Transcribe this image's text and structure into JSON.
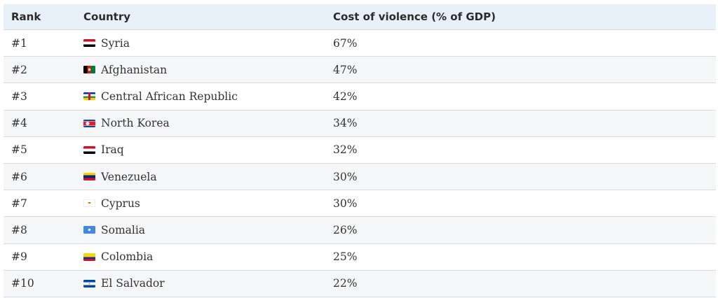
{
  "table": {
    "headers": {
      "rank": "Rank",
      "country": "Country",
      "cost": "Cost of violence (% of GDP)"
    },
    "rows": [
      {
        "rank": "#1",
        "country": "Syria",
        "cost": "67%",
        "flag_icon": "syria-flag-icon",
        "flag_colors": [
          "#ce1126",
          "#ffffff",
          "#000000"
        ]
      },
      {
        "rank": "#2",
        "country": "Afghanistan",
        "cost": "47%",
        "flag_icon": "afghanistan-flag-icon",
        "flag_colors": [
          "#000000",
          "#d32011",
          "#007a36"
        ]
      },
      {
        "rank": "#3",
        "country": "Central African Republic",
        "cost": "42%",
        "flag_icon": "central-african-republic-flag-icon",
        "flag_colors": [
          "#003082",
          "#ffffff",
          "#289728",
          "#ffce00",
          "#d21034"
        ]
      },
      {
        "rank": "#4",
        "country": "North Korea",
        "cost": "34%",
        "flag_icon": "north-korea-flag-icon",
        "flag_colors": [
          "#024fa2",
          "#ed1c27",
          "#ffffff"
        ]
      },
      {
        "rank": "#5",
        "country": "Iraq",
        "cost": "32%",
        "flag_icon": "iraq-flag-icon",
        "flag_colors": [
          "#ce1126",
          "#ffffff",
          "#000000"
        ]
      },
      {
        "rank": "#6",
        "country": "Venezuela",
        "cost": "30%",
        "flag_icon": "venezuela-flag-icon",
        "flag_colors": [
          "#ffcc00",
          "#00247d",
          "#cf142b"
        ]
      },
      {
        "rank": "#7",
        "country": "Cyprus",
        "cost": "30%",
        "flag_icon": "cyprus-flag-icon",
        "flag_colors": [
          "#ffffff",
          "#d57800"
        ]
      },
      {
        "rank": "#8",
        "country": "Somalia",
        "cost": "26%",
        "flag_icon": "somalia-flag-icon",
        "flag_colors": [
          "#4189dd",
          "#ffffff"
        ]
      },
      {
        "rank": "#9",
        "country": "Colombia",
        "cost": "25%",
        "flag_icon": "colombia-flag-icon",
        "flag_colors": [
          "#fcd116",
          "#003893",
          "#ce1126"
        ]
      },
      {
        "rank": "#10",
        "country": "El Salvador",
        "cost": "22%",
        "flag_icon": "el-salvador-flag-icon",
        "flag_colors": [
          "#0047ab",
          "#ffffff"
        ]
      }
    ]
  },
  "colors": {
    "header_bg": "#e8f1fa",
    "row_alt_bg": "#f5f6f8",
    "border": "#d9dde2",
    "text": "#333333"
  }
}
